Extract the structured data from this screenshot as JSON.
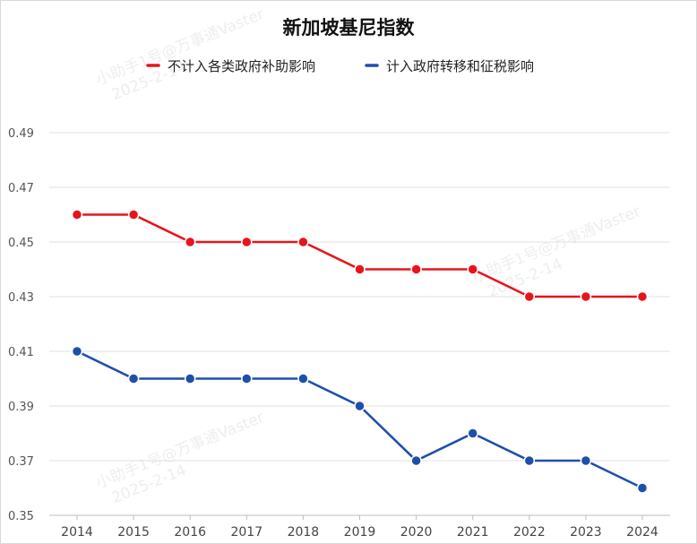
{
  "chart_data": {
    "type": "line",
    "title": "新加坡基尼指数",
    "xlabel": "",
    "ylabel": "",
    "x": [
      "2014",
      "2015",
      "2016",
      "2017",
      "2018",
      "2019",
      "2020",
      "2021",
      "2022",
      "2023",
      "2024"
    ],
    "yticks": [
      "0.35",
      "0.37",
      "0.39",
      "0.41",
      "0.43",
      "0.45",
      "0.47",
      "0.49"
    ],
    "ylim": [
      0.35,
      0.49
    ],
    "grid": true,
    "legend_position": "top-center",
    "series": [
      {
        "name": "不计入各类政府补助影响",
        "color": "#e8141b",
        "values": [
          0.46,
          0.46,
          0.45,
          0.45,
          0.45,
          0.44,
          0.44,
          0.44,
          0.43,
          0.43,
          0.43
        ]
      },
      {
        "name": "计入政府转移和征税影响",
        "color": "#1f4faa",
        "values": [
          0.41,
          0.4,
          0.4,
          0.4,
          0.4,
          0.39,
          0.37,
          0.38,
          0.37,
          0.37,
          0.36
        ]
      }
    ],
    "watermarks": [
      {
        "line1": "小助手1号@万事通Vaster",
        "line2": "2025-2-14"
      },
      {
        "line1": "小助手1号@万事通Vaster",
        "line2": "2025-2-14"
      },
      {
        "line1": "小助手1号@万事通Vaster",
        "line2": "2025-2-14"
      }
    ]
  }
}
